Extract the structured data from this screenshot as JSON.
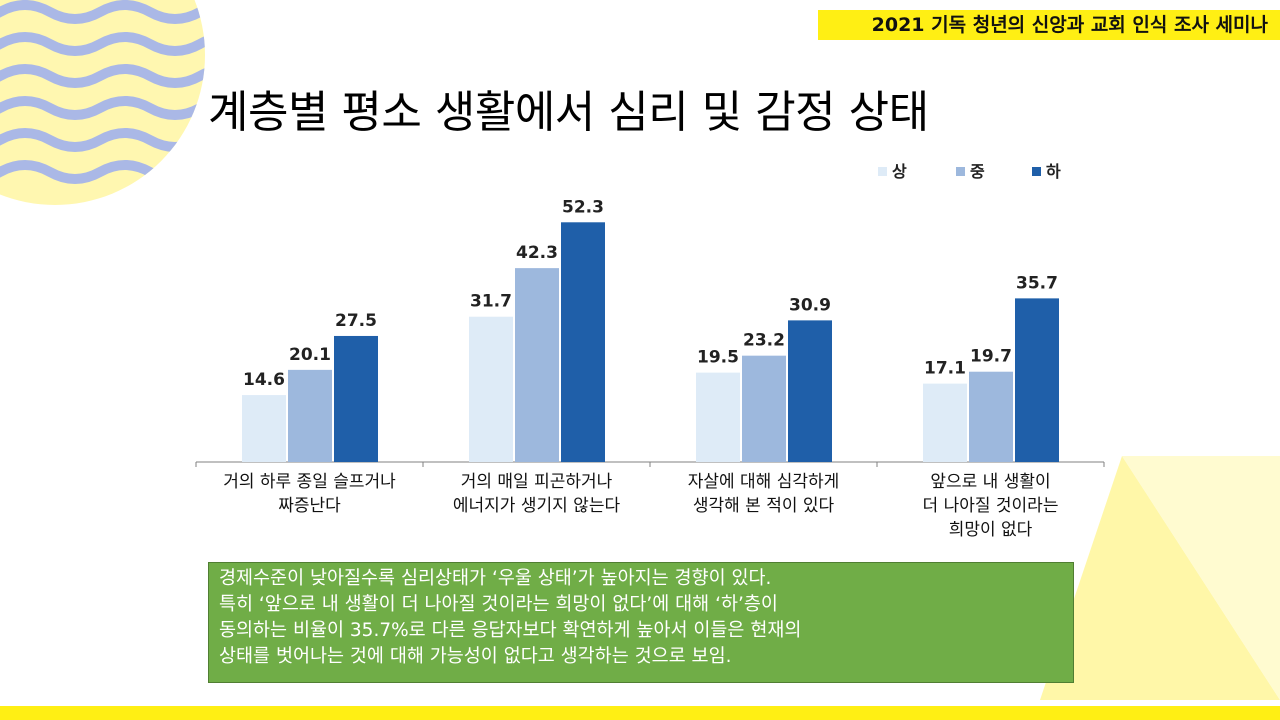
{
  "header": {
    "banner_text": "2021 기독 청년의 신앙과 교회 인식 조사 세미나"
  },
  "slide": {
    "title": "계층별 평소 생활에서 심리 및 감정 상태"
  },
  "chart_data": {
    "type": "bar",
    "title": "",
    "categories": [
      [
        "거의 하루 종일 슬프거나",
        "짜증난다"
      ],
      [
        "거의 매일 피곤하거나",
        "에너지가 생기지 않는다"
      ],
      [
        "자살에 대해 심각하게",
        "생각해 본 적이 있다"
      ],
      [
        "앞으로 내 생활이",
        "더 나아질 것이라는",
        "희망이 없다"
      ]
    ],
    "series": [
      {
        "name": "상",
        "color": "#deebf7",
        "values": [
          14.6,
          31.7,
          19.5,
          17.1
        ]
      },
      {
        "name": "중",
        "color": "#9db8dd",
        "values": [
          20.1,
          42.3,
          23.2,
          19.7
        ]
      },
      {
        "name": "하",
        "color": "#1f5fa9",
        "values": [
          27.5,
          52.3,
          30.9,
          35.7
        ]
      }
    ],
    "ylim": [
      0,
      60
    ],
    "legend": "top-right",
    "grid": false
  },
  "note": {
    "lines": [
      "경제수준이 낮아질수록 심리상태가 ‘우울 상태’가 높아지는 경향이 있다.",
      "특히 ‘앞으로 내 생활이 더 나아질 것이라는 희망이 없다’에 대해 ‘하’층이",
      "동의하는 비율이 35.7%로 다른 응답자보다 확연하게 높아서 이들은 현재의",
      "상태를 벗어나는 것에 대해 가능성이 없다고 생각하는 것으로 보임."
    ]
  },
  "theme": {
    "accent_yellow": "#ffef14",
    "wave_blue": "#aab8e6",
    "note_green": "#70ad47"
  }
}
